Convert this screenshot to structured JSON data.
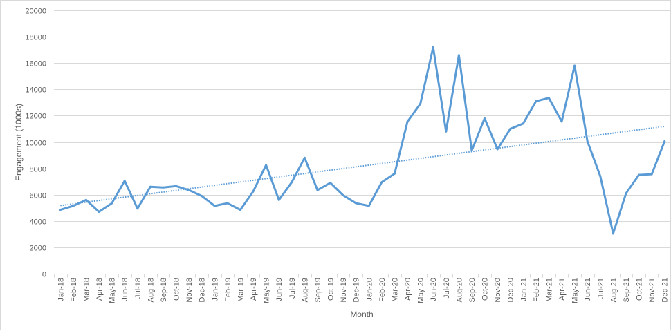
{
  "chart_data": {
    "type": "line",
    "title": "",
    "xlabel": "Month",
    "ylabel": "Engagement  (1000s)",
    "ylim": [
      0,
      20000
    ],
    "yticks": [
      0,
      2000,
      4000,
      6000,
      8000,
      10000,
      12000,
      14000,
      16000,
      18000,
      20000
    ],
    "grid": true,
    "legend": "none",
    "categories": [
      "Jan-18",
      "Feb-18",
      "Mar-18",
      "Apr-18",
      "May-18",
      "Jun-18",
      "Jul-18",
      "Aug-18",
      "Sep-18",
      "Oct-18",
      "Nov-18",
      "Dec-18",
      "Jan-19",
      "Feb-19",
      "Mar-19",
      "Apr-19",
      "May-19",
      "Jun-19",
      "Jul-19",
      "Aug-19",
      "Sep-19",
      "Oct-19",
      "Nov-19",
      "Dec-19",
      "Jan-20",
      "Feb-20",
      "Mar-20",
      "Apr-20",
      "May-20",
      "Jun-20",
      "Jul-20",
      "Aug-20",
      "Sep-20",
      "Oct-20",
      "Nov-20",
      "Dec-20",
      "Jan-21",
      "Feb-21",
      "Mar-21",
      "Apr-21",
      "May-21",
      "Jun-21",
      "Jul-21",
      "Aug-21",
      "Sep-21",
      "Oct-21",
      "Nov-21",
      "Dec-21"
    ],
    "series": [
      {
        "values": [
          4850,
          5150,
          5600,
          4700,
          5350,
          7050,
          4950,
          6600,
          6550,
          6650,
          6350,
          5900,
          5150,
          5350,
          4850,
          6250,
          8250,
          5600,
          6950,
          8800,
          6350,
          6900,
          5950,
          5350,
          5150,
          6950,
          7600,
          11550,
          12900,
          17200,
          10800,
          16600,
          9350,
          11800,
          9450,
          11000,
          11400,
          13100,
          13350,
          11550,
          15800,
          10050,
          7400,
          3050,
          6100,
          7500,
          7550,
          10050
        ],
        "color": "#5B9BD5"
      }
    ],
    "trendline": {
      "type": "linear",
      "style": "dotted",
      "color": "#5B9BD5"
    }
  }
}
